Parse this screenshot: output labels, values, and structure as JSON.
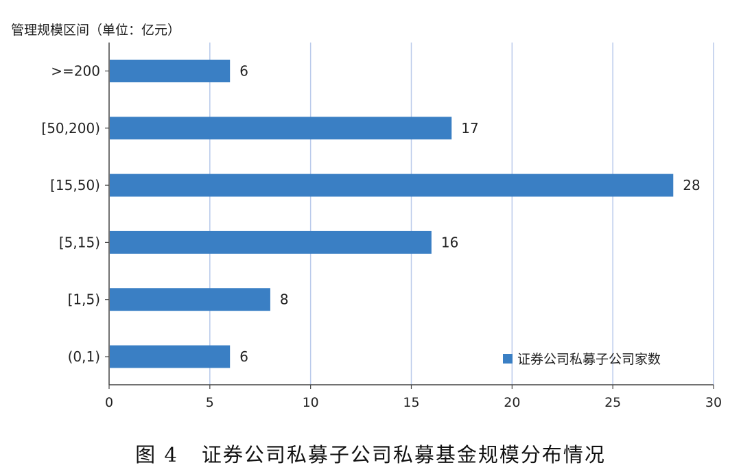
{
  "chart_data": {
    "type": "bar",
    "orientation": "horizontal",
    "title": "",
    "ylabel": "管理规模区间（单位：亿元）",
    "xlabel": "",
    "categories": [
      ">=200",
      "[50,200)",
      "[15,50)",
      "[5,15)",
      "[1,5)",
      "(0,1)"
    ],
    "series": [
      {
        "name": "证券公司私募子公司家数",
        "values": [
          6,
          17,
          28,
          16,
          8,
          6
        ],
        "color": "#3a7fc4"
      }
    ],
    "xlim": [
      0,
      30
    ],
    "xticks": [
      "0",
      "5",
      "10",
      "15",
      "20",
      "25",
      "30"
    ],
    "grid": "vertical",
    "gridColor": "#b9c9ea",
    "legend": "bottom-right",
    "data_labels": true
  },
  "caption": {
    "number": "图 4",
    "text": "证券公司私募子公司私募基金规模分布情况"
  }
}
